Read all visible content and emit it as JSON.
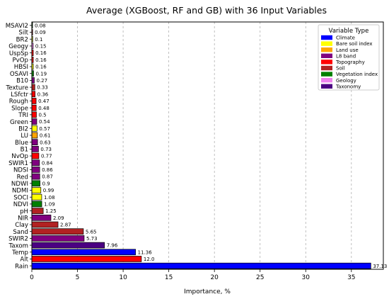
{
  "chart_data": {
    "type": "bar",
    "orientation": "horizontal",
    "title": "Average (XGBoost, RF and GB) with 36 Input Variables",
    "xlabel": "Importance, %",
    "ylabel": "",
    "xlim": [
      0,
      38.5
    ],
    "xticks": [
      0,
      5,
      10,
      15,
      20,
      25,
      30,
      35
    ],
    "grid": "vertical dashed",
    "legend_title": "Variable Type",
    "legend_position": "top-right",
    "legend": [
      {
        "label": "Climate",
        "color": "#0000ff"
      },
      {
        "label": "Bare soil index",
        "color": "#ffff00"
      },
      {
        "label": "Land use",
        "color": "#ffa500"
      },
      {
        "label": "L8 band",
        "color": "#800080"
      },
      {
        "label": "Topography",
        "color": "#ff0000"
      },
      {
        "label": "Soil",
        "color": "#b22222"
      },
      {
        "label": "Vegetation index",
        "color": "#008000"
      },
      {
        "label": "Geology",
        "color": "#ee82ee"
      },
      {
        "label": "Taxonomy",
        "color": "#4b0082"
      }
    ],
    "bars": [
      {
        "label": "Rain",
        "value": 37.13,
        "value_label": "37.13",
        "type": "Climate"
      },
      {
        "label": "Alt",
        "value": 12.0,
        "value_label": "12.0",
        "type": "Topography"
      },
      {
        "label": "Temp",
        "value": 11.36,
        "value_label": "11.36",
        "type": "Climate"
      },
      {
        "label": "Taxom",
        "value": 7.96,
        "value_label": "7.96",
        "type": "Taxonomy"
      },
      {
        "label": "SWIR2",
        "value": 5.73,
        "value_label": "5.73",
        "type": "L8 band"
      },
      {
        "label": "Sand",
        "value": 5.65,
        "value_label": "5.65",
        "type": "Soil"
      },
      {
        "label": "Clay",
        "value": 2.87,
        "value_label": "2.87",
        "type": "Soil"
      },
      {
        "label": "NIR",
        "value": 2.09,
        "value_label": "2.09",
        "type": "L8 band"
      },
      {
        "label": "pH",
        "value": 1.25,
        "value_label": "1.25",
        "type": "Soil"
      },
      {
        "label": "NDVI",
        "value": 1.09,
        "value_label": "1.09",
        "type": "Vegetation index"
      },
      {
        "label": "SOCI",
        "value": 1.08,
        "value_label": "1.08",
        "type": "Bare soil index"
      },
      {
        "label": "NDMI",
        "value": 0.99,
        "value_label": "0.99",
        "type": "Bare soil index"
      },
      {
        "label": "NDWI",
        "value": 0.9,
        "value_label": "0.9",
        "type": "Vegetation index"
      },
      {
        "label": "Red",
        "value": 0.87,
        "value_label": "0.87",
        "type": "L8 band"
      },
      {
        "label": "NDSI",
        "value": 0.86,
        "value_label": "0.86",
        "type": "L8 band"
      },
      {
        "label": "SWIR1",
        "value": 0.84,
        "value_label": "0.84",
        "type": "L8 band"
      },
      {
        "label": "NvOp",
        "value": 0.77,
        "value_label": "0.77",
        "type": "Topography"
      },
      {
        "label": "B1",
        "value": 0.73,
        "value_label": "0.73",
        "type": "L8 band"
      },
      {
        "label": "Blue",
        "value": 0.63,
        "value_label": "0.63",
        "type": "L8 band"
      },
      {
        "label": "LU",
        "value": 0.61,
        "value_label": "0.61",
        "type": "Land use"
      },
      {
        "label": "BI2",
        "value": 0.57,
        "value_label": "0.57",
        "type": "Bare soil index"
      },
      {
        "label": "Green",
        "value": 0.54,
        "value_label": "0.54",
        "type": "L8 band"
      },
      {
        "label": "TRI",
        "value": 0.5,
        "value_label": "0.5",
        "type": "Topography"
      },
      {
        "label": "Slope",
        "value": 0.48,
        "value_label": "0.48",
        "type": "Topography"
      },
      {
        "label": "Rough",
        "value": 0.47,
        "value_label": "0.47",
        "type": "Topography"
      },
      {
        "label": "LSfctr",
        "value": 0.36,
        "value_label": "0.36",
        "type": "Topography"
      },
      {
        "label": "Texture",
        "value": 0.33,
        "value_label": "0.33",
        "type": "Soil"
      },
      {
        "label": "B10",
        "value": 0.27,
        "value_label": "0.27",
        "type": "L8 band"
      },
      {
        "label": "OSAVI",
        "value": 0.19,
        "value_label": "0.19",
        "type": "Vegetation index"
      },
      {
        "label": "HBSI",
        "value": 0.16,
        "value_label": "0.16",
        "type": "Bare soil index"
      },
      {
        "label": "PvOp",
        "value": 0.16,
        "value_label": "0.16",
        "type": "Topography"
      },
      {
        "label": "UspSp",
        "value": 0.16,
        "value_label": "0.16",
        "type": "Topography"
      },
      {
        "label": "Geogy",
        "value": 0.15,
        "value_label": "0.15",
        "type": "Geology"
      },
      {
        "label": "BR2",
        "value": 0.1,
        "value_label": "0.1",
        "type": "Bare soil index"
      },
      {
        "label": "Silt",
        "value": 0.09,
        "value_label": "0.09",
        "type": "Soil"
      },
      {
        "label": "MSAVI2",
        "value": 0.08,
        "value_label": "0.08",
        "type": "Vegetation index"
      }
    ]
  }
}
